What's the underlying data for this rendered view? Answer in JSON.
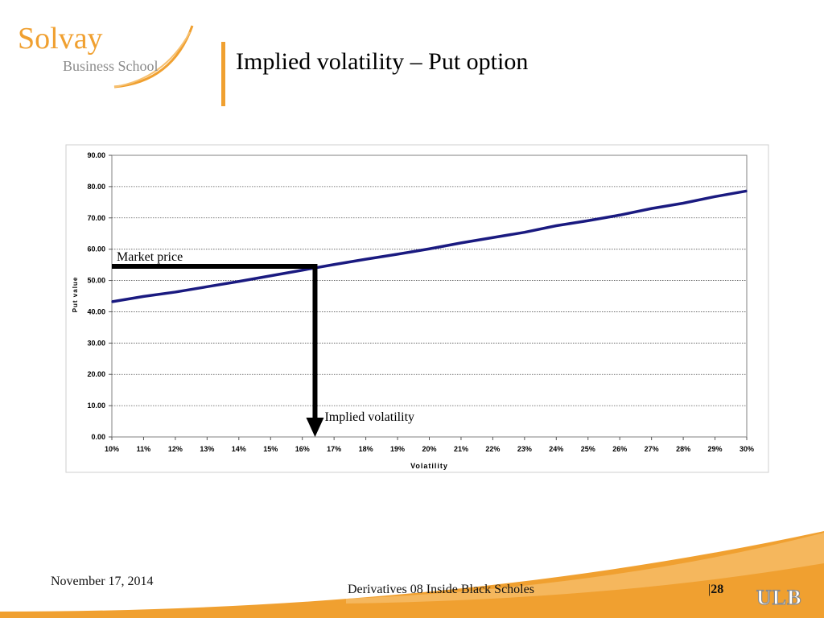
{
  "slide": {
    "title": "Implied volatility – Put option"
  },
  "logo": {
    "name": "Solvay",
    "subtitle": "Business School"
  },
  "footer": {
    "date": "November 17, 2014",
    "course": "Derivatives 08 Inside Black Scholes",
    "page_separator": "|",
    "page": "28",
    "institution_logo": "ULB"
  },
  "colors": {
    "accent_orange": "#f0a030",
    "line_navy": "#1a1a80",
    "marker_black": "#000000"
  },
  "chart_data": {
    "type": "line",
    "xlabel": "Volatility",
    "ylabel": "Put value",
    "x": [
      0.1,
      0.11,
      0.12,
      0.13,
      0.14,
      0.15,
      0.16,
      0.17,
      0.18,
      0.19,
      0.2,
      0.21,
      0.22,
      0.23,
      0.24,
      0.25,
      0.26,
      0.27,
      0.28,
      0.29,
      0.3
    ],
    "x_tick_labels": [
      "10%",
      "11%",
      "12%",
      "13%",
      "14%",
      "15%",
      "16%",
      "17%",
      "18%",
      "19%",
      "20%",
      "21%",
      "22%",
      "23%",
      "24%",
      "25%",
      "26%",
      "27%",
      "28%",
      "29%",
      "30%"
    ],
    "y_tick_labels": [
      "0.00",
      "10.00",
      "20.00",
      "30.00",
      "40.00",
      "50.00",
      "60.00",
      "70.00",
      "80.00",
      "90.00"
    ],
    "ylim": [
      0,
      90
    ],
    "series": [
      {
        "values": [
          43.2,
          44.9,
          46.3,
          48.0,
          49.7,
          51.5,
          53.3,
          55.1,
          56.8,
          58.4,
          60.1,
          62.0,
          63.7,
          65.4,
          67.5,
          69.1,
          70.9,
          73.0,
          74.7,
          76.8,
          78.6
        ]
      }
    ],
    "grid": "horizontal dotted",
    "annotations": [
      {
        "text": "Market price",
        "y": 54.5
      },
      {
        "text": "Implied volatility",
        "x": 0.164
      }
    ]
  }
}
